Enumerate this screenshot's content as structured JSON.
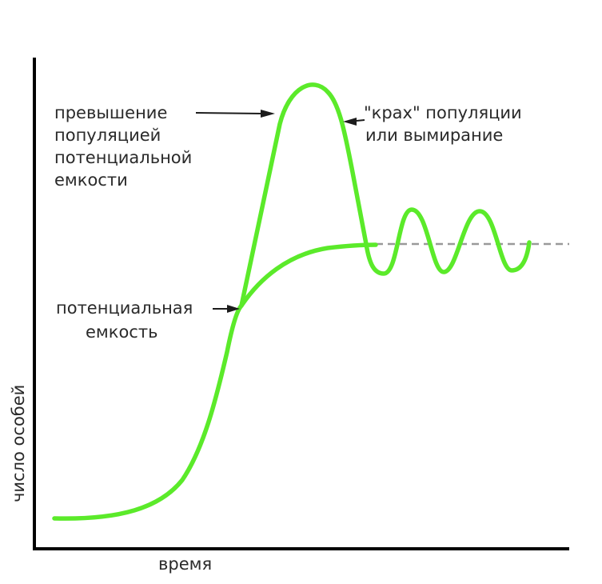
{
  "diagram": {
    "labels": {
      "overshoot": [
        "превышение",
        "популяцией",
        "потенциальной",
        "емкости"
      ],
      "crash": [
        "\"крах\" популяции",
        "или вымирание"
      ],
      "capacity": [
        "потенциальная",
        "емкость"
      ]
    },
    "axes": {
      "x_label": "время",
      "y_label": "число особей"
    },
    "colors": {
      "curve": "#5bea2a",
      "axis": "#000000",
      "text": "#2a2a2a",
      "dashed_line": "#999999"
    }
  }
}
